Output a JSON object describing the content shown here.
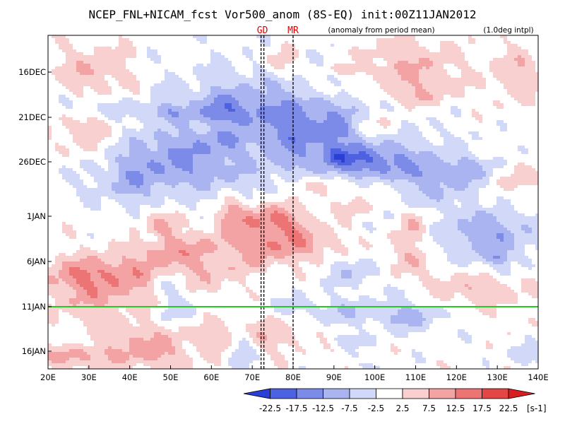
{
  "chart_data": {
    "type": "heatmap",
    "title": "NCEP_FNL+NICAM_fcst Vor500_anom (8S-EQ) init:00Z11JAN2012",
    "subtitle": "(anomaly from period mean)",
    "note": "(1.0deg intpl)",
    "x_ticks": [
      "20E",
      "30E",
      "40E",
      "50E",
      "60E",
      "70E",
      "80E",
      "90E",
      "100E",
      "110E",
      "120E",
      "130E",
      "140E"
    ],
    "x_range": [
      20,
      140
    ],
    "y_ticks": [
      "16DEC",
      "21DEC",
      "26DEC",
      "1JAN",
      "6JAN",
      "11JAN",
      "16JAN"
    ],
    "markers": [
      {
        "label": "GD",
        "lon": 72.5
      },
      {
        "label": "MR",
        "lon": 80
      }
    ],
    "init_line_label": "11JAN",
    "colorbar": {
      "labels": [
        "-22.5",
        "-17.5",
        "-12.5",
        "-7.5",
        "-2.5",
        "2.5",
        "7.5",
        "12.5",
        "17.5",
        "22.5"
      ],
      "unit": "[s-1]",
      "colors": [
        "#2a3fd6",
        "#4e61e0",
        "#7c8be8",
        "#aab4f0",
        "#d2d8f8",
        "#ffffff",
        "#f9d0d0",
        "#f3a3a3",
        "#ec7474",
        "#e44545",
        "#d81e1e"
      ]
    }
  }
}
